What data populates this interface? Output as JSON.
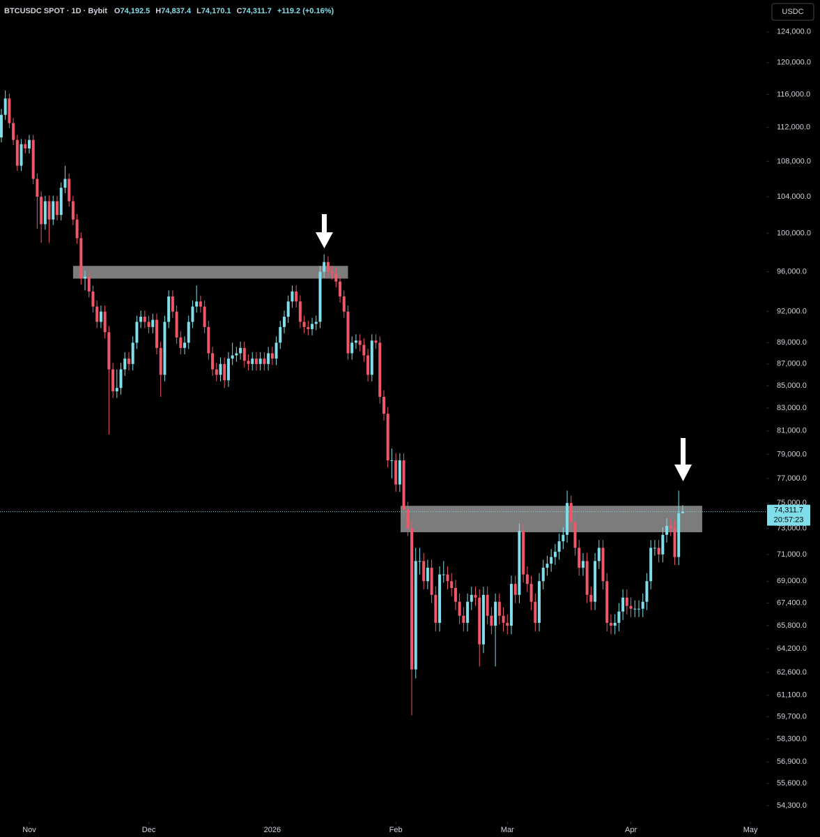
{
  "chart_data": {
    "type": "candlestick",
    "title": "BTCUSDC SPOT · 1D · Bybit",
    "ohlc_legend": [
      {
        "label": "O",
        "value": "74,192.5"
      },
      {
        "label": "H",
        "value": "74,837.4"
      },
      {
        "label": "L",
        "value": "74,170.1"
      },
      {
        "label": "C",
        "value": "74,311.7"
      }
    ],
    "change": "+119.2 (+0.16%)",
    "currency": "USDC",
    "log_scale": true,
    "up_color": "#80deea",
    "down_color": "#f0586a",
    "zone_color": "#8a8a8a",
    "last_price": {
      "value": 74311.7,
      "label": "74,311.7"
    },
    "countdown": "20:57:23",
    "zones": [
      {
        "x_from": 11,
        "x_to": 80,
        "low": 95300,
        "high": 96600
      },
      {
        "x_from": 93.2,
        "x_to": 168.9,
        "low": 72700,
        "high": 74780
      }
    ],
    "xlim": [
      -7.34,
      185
    ],
    "xticks": [
      {
        "value": 0,
        "label": "Nov"
      },
      {
        "value": 30,
        "label": "Dec"
      },
      {
        "value": 61,
        "label": "2026"
      },
      {
        "value": 92,
        "label": "Feb"
      },
      {
        "value": 120,
        "label": "Mar"
      },
      {
        "value": 151,
        "label": "Apr"
      },
      {
        "value": 181,
        "label": "May"
      }
    ],
    "ylim": [
      53700,
      128300
    ],
    "yticks": [
      {
        "value": 124000,
        "label": "124,000.0"
      },
      {
        "value": 120000,
        "label": "120,000.0"
      },
      {
        "value": 116000,
        "label": "116,000.0"
      },
      {
        "value": 112000,
        "label": "112,000.0"
      },
      {
        "value": 108000,
        "label": "108,000.0"
      },
      {
        "value": 104000,
        "label": "104,000.0"
      },
      {
        "value": 100000,
        "label": "100,000.0"
      },
      {
        "value": 96000,
        "label": "96,000.0"
      },
      {
        "value": 92000,
        "label": "92,000.0"
      },
      {
        "value": 89000,
        "label": "89,000.0"
      },
      {
        "value": 87000,
        "label": "87,000.0"
      },
      {
        "value": 85000,
        "label": "85,000.0"
      },
      {
        "value": 83000,
        "label": "83,000.0"
      },
      {
        "value": 81000,
        "label": "81,000.0"
      },
      {
        "value": 79000,
        "label": "79,000.0"
      },
      {
        "value": 77000,
        "label": "77,000.0"
      },
      {
        "value": 75000,
        "label": "75,000.0"
      },
      {
        "value": 73000,
        "label": "73,000.0"
      },
      {
        "value": 71000,
        "label": "71,000.0"
      },
      {
        "value": 69000,
        "label": "69,000.0"
      },
      {
        "value": 67400,
        "label": "67,400.0"
      },
      {
        "value": 65800,
        "label": "65,800.0"
      },
      {
        "value": 64200,
        "label": "64,200.0"
      },
      {
        "value": 62600,
        "label": "62,600.0"
      },
      {
        "value": 61100,
        "label": "61,100.0"
      },
      {
        "value": 59700,
        "label": "59,700.0"
      },
      {
        "value": 58300,
        "label": "58,300.0"
      },
      {
        "value": 56900,
        "label": "56,900.0"
      },
      {
        "value": 55600,
        "label": "55,600.0"
      },
      {
        "value": 54300,
        "label": "54,300.0"
      }
    ],
    "x": [
      -7,
      -6,
      -5,
      -4,
      -3,
      -2,
      -1,
      0,
      1,
      2,
      3,
      4,
      5,
      6,
      7,
      8,
      9,
      10,
      11,
      12,
      13,
      14,
      15,
      16,
      17,
      18,
      19,
      20,
      21,
      22,
      23,
      24,
      25,
      26,
      27,
      28,
      29,
      30,
      31,
      32,
      33,
      34,
      35,
      36,
      37,
      38,
      39,
      40,
      41,
      42,
      43,
      44,
      45,
      46,
      47,
      48,
      49,
      50,
      51,
      52,
      53,
      54,
      55,
      56,
      57,
      58,
      59,
      60,
      61,
      62,
      63,
      64,
      65,
      66,
      67,
      68,
      69,
      70,
      71,
      72,
      73,
      74,
      75,
      76,
      77,
      78,
      79,
      80,
      81,
      82,
      83,
      84,
      85,
      86,
      87,
      88,
      89,
      90,
      91,
      92,
      93,
      94,
      95,
      96,
      97,
      98,
      99,
      100,
      101,
      102,
      103,
      104,
      105,
      106,
      107,
      108,
      109,
      110,
      111,
      112,
      113,
      114,
      115,
      116,
      117,
      118,
      119,
      120,
      121,
      122,
      123,
      124,
      125,
      126,
      127,
      128,
      129,
      130,
      131,
      132,
      133,
      134,
      135,
      136,
      137,
      138,
      139,
      140,
      141,
      142,
      143,
      144,
      145,
      146,
      147,
      148,
      149,
      150,
      151,
      152,
      153,
      154,
      155,
      156,
      157,
      158,
      159,
      160,
      161,
      162,
      163,
      164
    ],
    "open": [
      110800,
      113500,
      115500,
      112500,
      110500,
      107500,
      110000,
      109500,
      110500,
      106000,
      104000,
      101000,
      103500,
      101500,
      103500,
      102000,
      105000,
      106000,
      103500,
      101500,
      99500,
      95300,
      95500,
      94000,
      92500,
      91000,
      92000,
      90000,
      86500,
      84500,
      84800,
      86500,
      87500,
      87000,
      89000,
      91000,
      91500,
      91000,
      90500,
      91200,
      88500,
      86000,
      91000,
      93500,
      92000,
      89500,
      88500,
      89000,
      91000,
      92500,
      93000,
      92500,
      90500,
      88000,
      86500,
      86000,
      87000,
      85500,
      87500,
      87800,
      88000,
      88500,
      87300,
      87000,
      87500,
      87000,
      87500,
      87000,
      88000,
      87500,
      89000,
      90500,
      91500,
      93000,
      94000,
      93000,
      91000,
      90500,
      90300,
      90800,
      91000,
      96000,
      97000,
      96000,
      95800,
      95000,
      93500,
      92000,
      88000,
      89000,
      89200,
      88800,
      87800,
      86000,
      89200,
      89000,
      84000,
      82500,
      78500,
      78500,
      76500,
      78500,
      74500,
      73000,
      62800,
      70500,
      70500,
      69000,
      70000,
      68000,
      66000,
      69500,
      69500,
      69000,
      68500,
      67500,
      66500,
      66000,
      67500,
      68000,
      67800,
      64500,
      68000,
      66500,
      65800,
      67500,
      66500,
      66000,
      65800,
      68800,
      68000,
      72800,
      69500,
      68800,
      67500,
      66000,
      69000,
      70000,
      70300,
      70800,
      71200,
      72000,
      72500,
      75000,
      73500,
      71500,
      70000,
      70500,
      68000,
      67500,
      70500,
      71500,
      69000,
      66000,
      65800,
      66000,
      66800,
      67800,
      67200,
      67000,
      67000,
      67000,
      67500,
      69000,
      71500,
      71500,
      71000,
      72500,
      73200,
      73000,
      70800,
      74192.5
    ],
    "high": [
      114200,
      116500,
      116100,
      113100,
      111100,
      110600,
      110600,
      111100,
      111100,
      106600,
      104600,
      104100,
      104100,
      104100,
      104100,
      105600,
      107500,
      106600,
      104100,
      102100,
      100100,
      96100,
      96100,
      94600,
      93100,
      92600,
      92600,
      90600,
      87100,
      86500,
      87100,
      88100,
      88100,
      89600,
      91600,
      92100,
      92100,
      91600,
      91800,
      91800,
      89100,
      91600,
      94100,
      94100,
      92600,
      90100,
      89600,
      91600,
      93100,
      94600,
      93600,
      93100,
      91100,
      88600,
      87100,
      87600,
      87600,
      88100,
      89000,
      88600,
      89100,
      89100,
      87900,
      88100,
      88100,
      88100,
      88100,
      88600,
      88600,
      89600,
      91100,
      92100,
      93600,
      94600,
      94600,
      93600,
      91600,
      91100,
      91400,
      91600,
      96600,
      97800,
      97600,
      96600,
      96400,
      95600,
      94100,
      92600,
      89600,
      89800,
      89800,
      89400,
      88400,
      89800,
      89800,
      89600,
      84600,
      83100,
      79500,
      79100,
      79100,
      79100,
      75100,
      73600,
      71500,
      71500,
      71100,
      70600,
      70600,
      68600,
      70100,
      70500,
      70100,
      69600,
      69100,
      68100,
      67100,
      68100,
      68600,
      68600,
      68400,
      68600,
      68600,
      67100,
      68100,
      68100,
      67100,
      66600,
      69400,
      69400,
      73400,
      73400,
      70100,
      69400,
      68100,
      69600,
      70600,
      70900,
      71400,
      71800,
      72600,
      73100,
      76000,
      75600,
      74100,
      72100,
      71100,
      71100,
      68600,
      71100,
      72100,
      72100,
      69600,
      66600,
      66600,
      67400,
      68400,
      68400,
      67800,
      67600,
      67600,
      68100,
      69600,
      72100,
      72100,
      72100,
      73100,
      73800,
      73800,
      73600,
      76000,
      74837.4
    ],
    "low": [
      110200,
      112900,
      111900,
      109900,
      106900,
      106900,
      108900,
      108900,
      105400,
      100500,
      99000,
      100400,
      99000,
      100900,
      101400,
      101400,
      104400,
      102900,
      100900,
      98900,
      94700,
      94100,
      93400,
      91900,
      90400,
      90400,
      89400,
      80700,
      83900,
      83900,
      84200,
      85900,
      86400,
      86400,
      88400,
      90400,
      90400,
      89900,
      89900,
      87900,
      84000,
      85400,
      90400,
      91400,
      88900,
      87900,
      87900,
      88400,
      90400,
      91900,
      91900,
      89900,
      87400,
      85900,
      85400,
      85400,
      84800,
      84900,
      86900,
      87200,
      87400,
      86700,
      86400,
      86400,
      86400,
      86400,
      86400,
      86400,
      86900,
      86900,
      88400,
      89900,
      90900,
      92400,
      92400,
      90400,
      89900,
      89700,
      89700,
      90200,
      90400,
      95400,
      95400,
      95200,
      94400,
      92900,
      91400,
      87400,
      87400,
      88400,
      88200,
      87200,
      85400,
      85400,
      88400,
      83400,
      81900,
      77900,
      77000,
      75900,
      75900,
      73900,
      72400,
      59800,
      62200,
      69500,
      68400,
      68400,
      67400,
      65400,
      65400,
      68900,
      68400,
      67900,
      66900,
      65900,
      65400,
      65400,
      66900,
      67200,
      63000,
      63900,
      65900,
      65200,
      63000,
      65900,
      65400,
      65200,
      65200,
      67400,
      67400,
      68900,
      68200,
      66900,
      65400,
      65400,
      68400,
      69400,
      69700,
      70200,
      70600,
      71400,
      71900,
      72900,
      70900,
      69400,
      69400,
      67400,
      66900,
      66900,
      69900,
      68400,
      65400,
      65200,
      65200,
      65400,
      66200,
      66600,
      66400,
      66400,
      66400,
      66400,
      66900,
      68400,
      70900,
      70400,
      70400,
      71900,
      72400,
      70200,
      70200,
      74170.1
    ],
    "close": [
      113500,
      115500,
      112500,
      110500,
      107500,
      110000,
      109500,
      110500,
      106000,
      104000,
      101000,
      103500,
      101500,
      103500,
      102000,
      105000,
      106000,
      103500,
      101500,
      99500,
      95300,
      95500,
      94000,
      92500,
      91000,
      92000,
      90000,
      86500,
      84500,
      84800,
      86500,
      87500,
      87000,
      89000,
      91000,
      91500,
      91000,
      90500,
      91200,
      88500,
      86000,
      91000,
      93500,
      92000,
      89500,
      88500,
      89000,
      91000,
      92500,
      93000,
      92500,
      90500,
      88000,
      86500,
      86000,
      87000,
      85500,
      87500,
      87800,
      88000,
      88500,
      87300,
      87000,
      87500,
      87000,
      87500,
      87000,
      88000,
      87500,
      89000,
      90500,
      91500,
      93000,
      94000,
      93000,
      91000,
      90500,
      90300,
      90800,
      91000,
      96000,
      97000,
      96000,
      95800,
      95000,
      93500,
      92000,
      88000,
      89000,
      89200,
      88800,
      87800,
      86000,
      89200,
      89000,
      84000,
      82500,
      78500,
      78500,
      76500,
      78500,
      74500,
      73000,
      62800,
      70500,
      70500,
      69000,
      70000,
      68000,
      66000,
      69500,
      69500,
      69000,
      68500,
      67500,
      66500,
      66000,
      67500,
      68000,
      67800,
      64500,
      68000,
      66500,
      65800,
      67500,
      66500,
      66000,
      65800,
      68800,
      68000,
      72800,
      69500,
      68800,
      67500,
      66000,
      69000,
      70000,
      70300,
      70800,
      71200,
      72000,
      72500,
      75000,
      73500,
      71500,
      70000,
      70500,
      68000,
      67500,
      70500,
      71500,
      69000,
      66000,
      65800,
      66000,
      66800,
      67800,
      67200,
      67000,
      67000,
      67000,
      67500,
      69000,
      71500,
      71500,
      71000,
      72500,
      73200,
      73000,
      70800,
      74192.5,
      74311.7
    ]
  }
}
